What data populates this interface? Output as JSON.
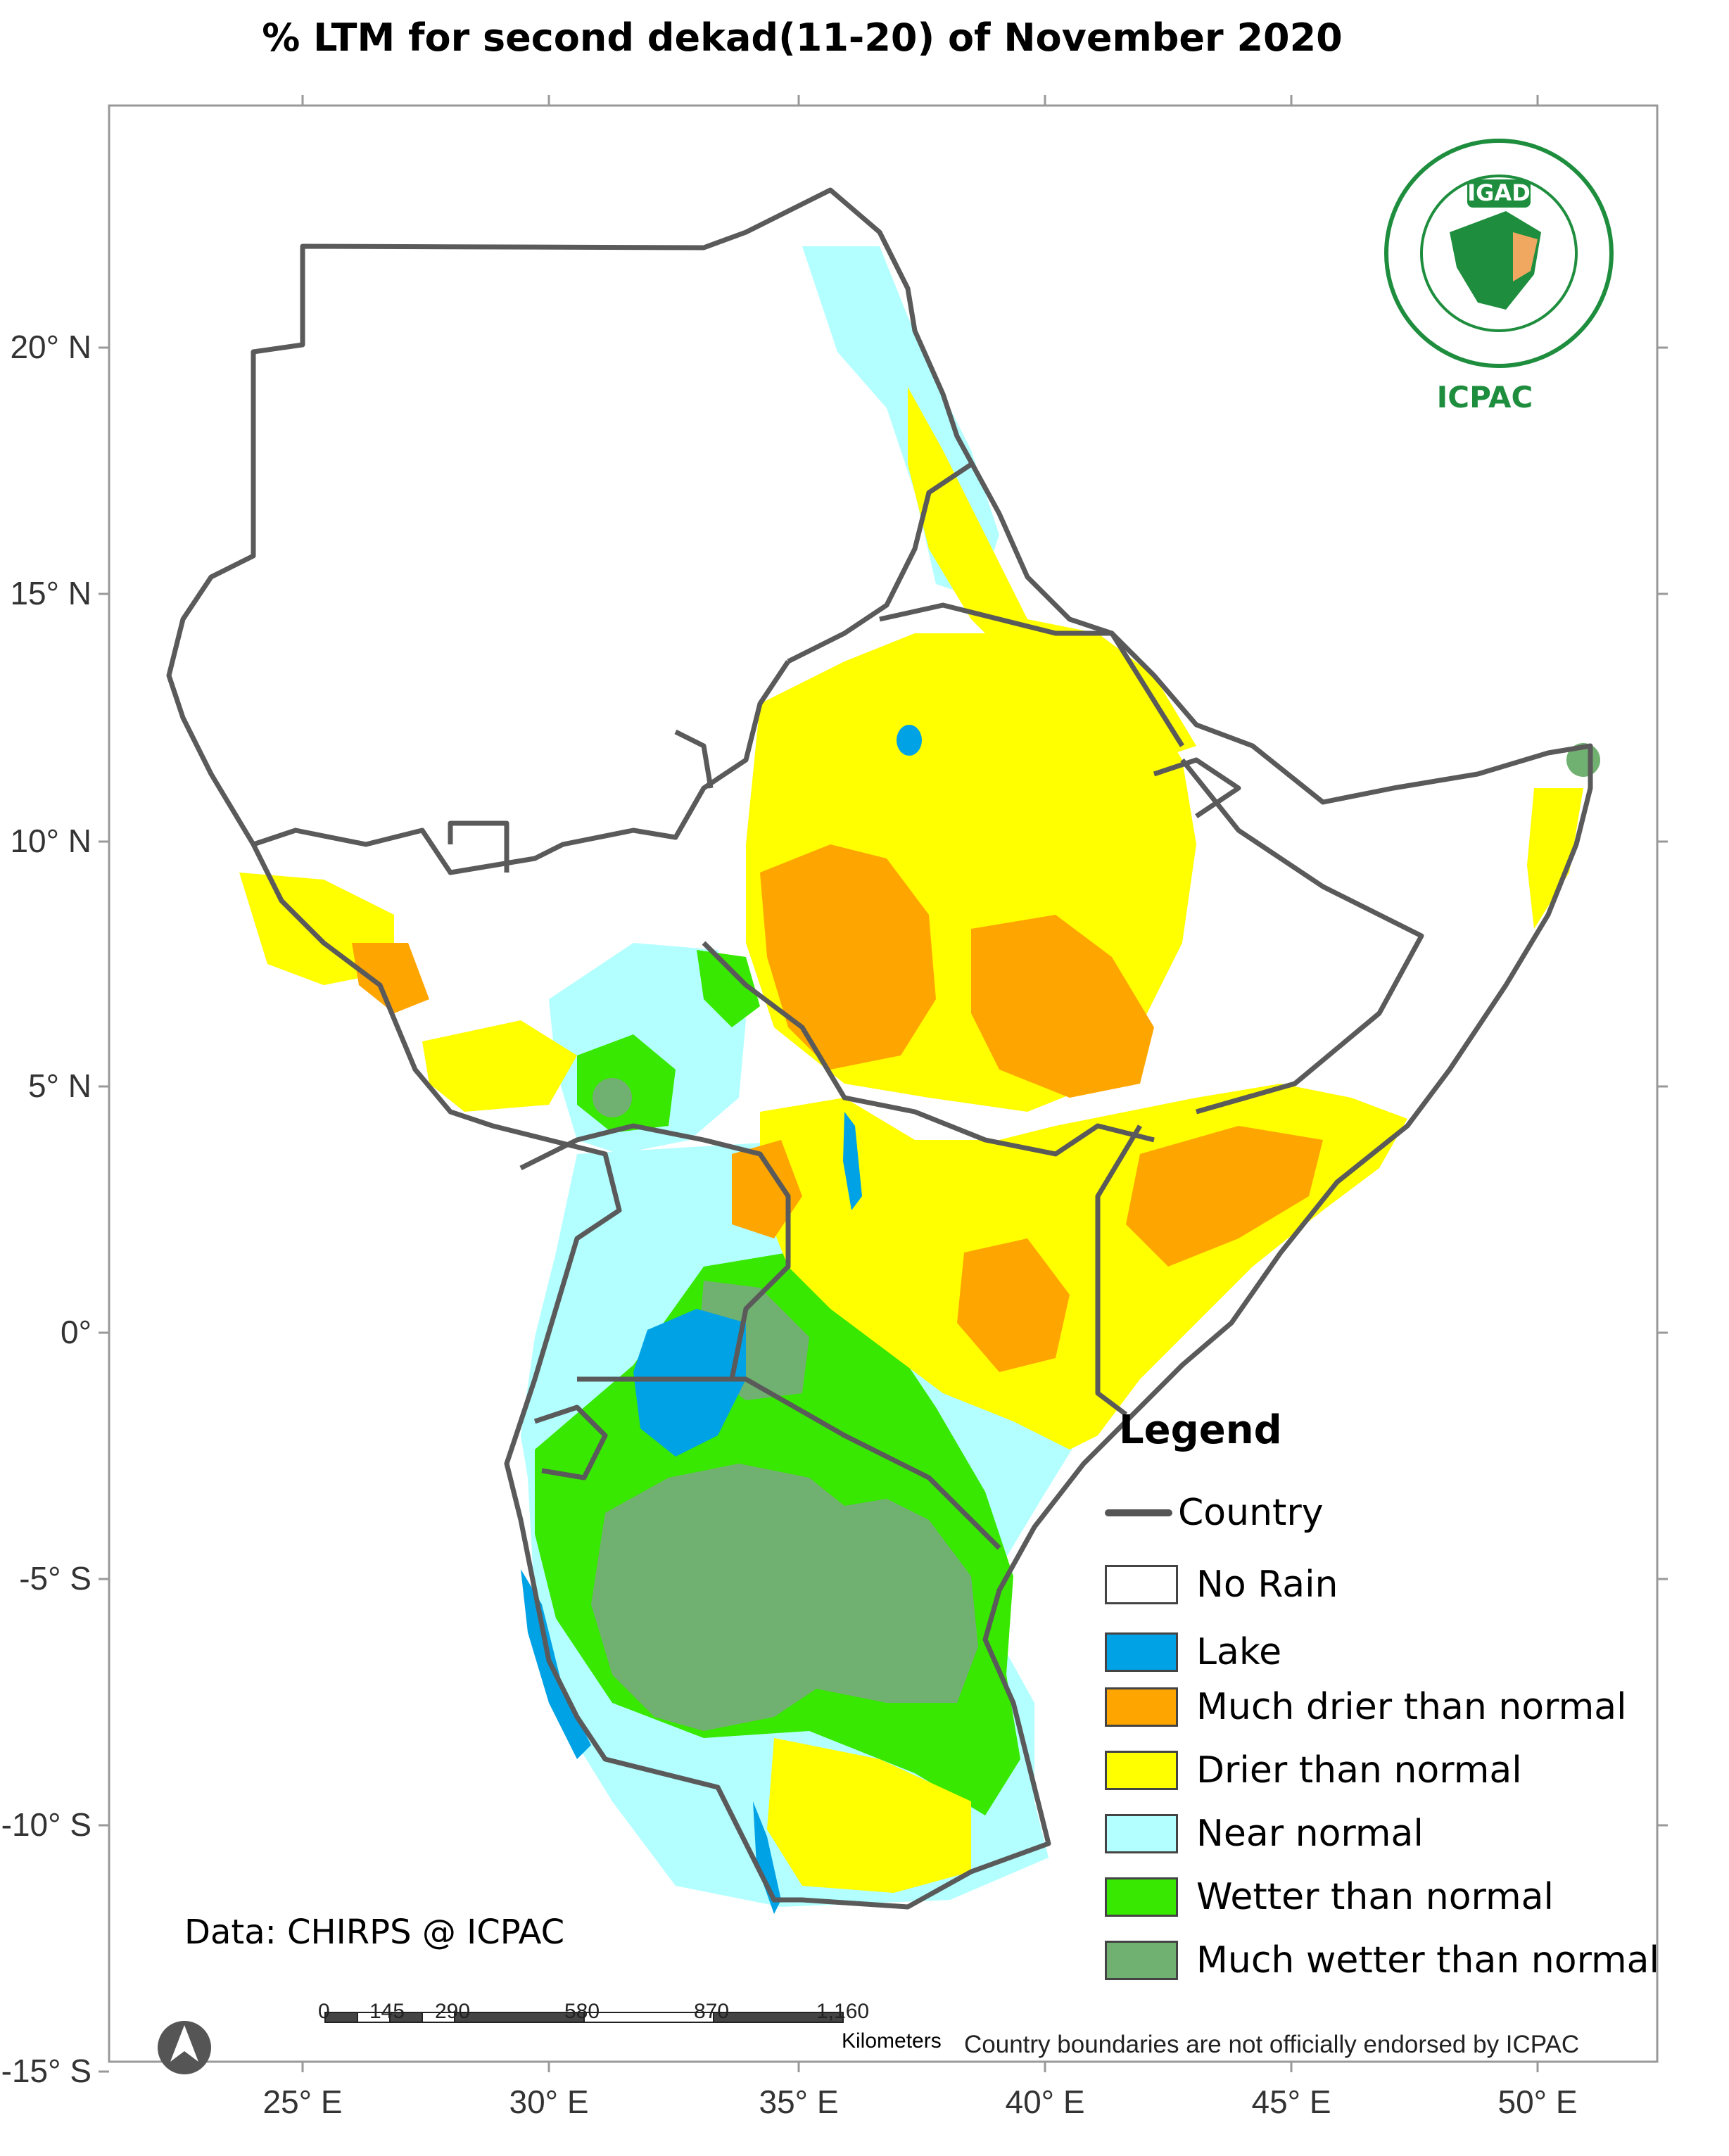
{
  "title": "% LTM  for  second dekad(11-20)  of November 2020",
  "axes": {
    "lat_labels": [
      "20° N",
      "15° N",
      "10° N",
      "5° N",
      "0°",
      "-5° S",
      "-10° S",
      "-15° S"
    ],
    "lon_labels": [
      "25° E",
      "30° E",
      "35° E",
      "40° E",
      "45° E",
      "50° E"
    ]
  },
  "legend": {
    "title": "Legend",
    "country_label": "Country",
    "items": [
      {
        "label": "No Rain",
        "color": "#ffffff"
      },
      {
        "label": "Lake",
        "color": "#00a2e6"
      },
      {
        "label": "Much drier than normal",
        "color": "#ffa500"
      },
      {
        "label": "Drier than normal",
        "color": "#ffff00"
      },
      {
        "label": "Near normal",
        "color": "#b3ffff"
      },
      {
        "label": "Wetter than normal",
        "color": "#38e800"
      },
      {
        "label": "Much wetter than normal",
        "color": "#70b070"
      }
    ]
  },
  "logo": {
    "name": "IGAD",
    "org": "ICPAC"
  },
  "source": "Data: CHIRPS @ ICPAC",
  "disclaimer": "Country boundaries are not officially endorsed by ICPAC",
  "scale_bar": {
    "labels": [
      "0",
      "145",
      "290",
      "580",
      "870",
      "1,160"
    ],
    "unit": "Kilometers"
  },
  "north_arrow": "north-arrow-icon",
  "boundary_color": "#5a5a5a"
}
